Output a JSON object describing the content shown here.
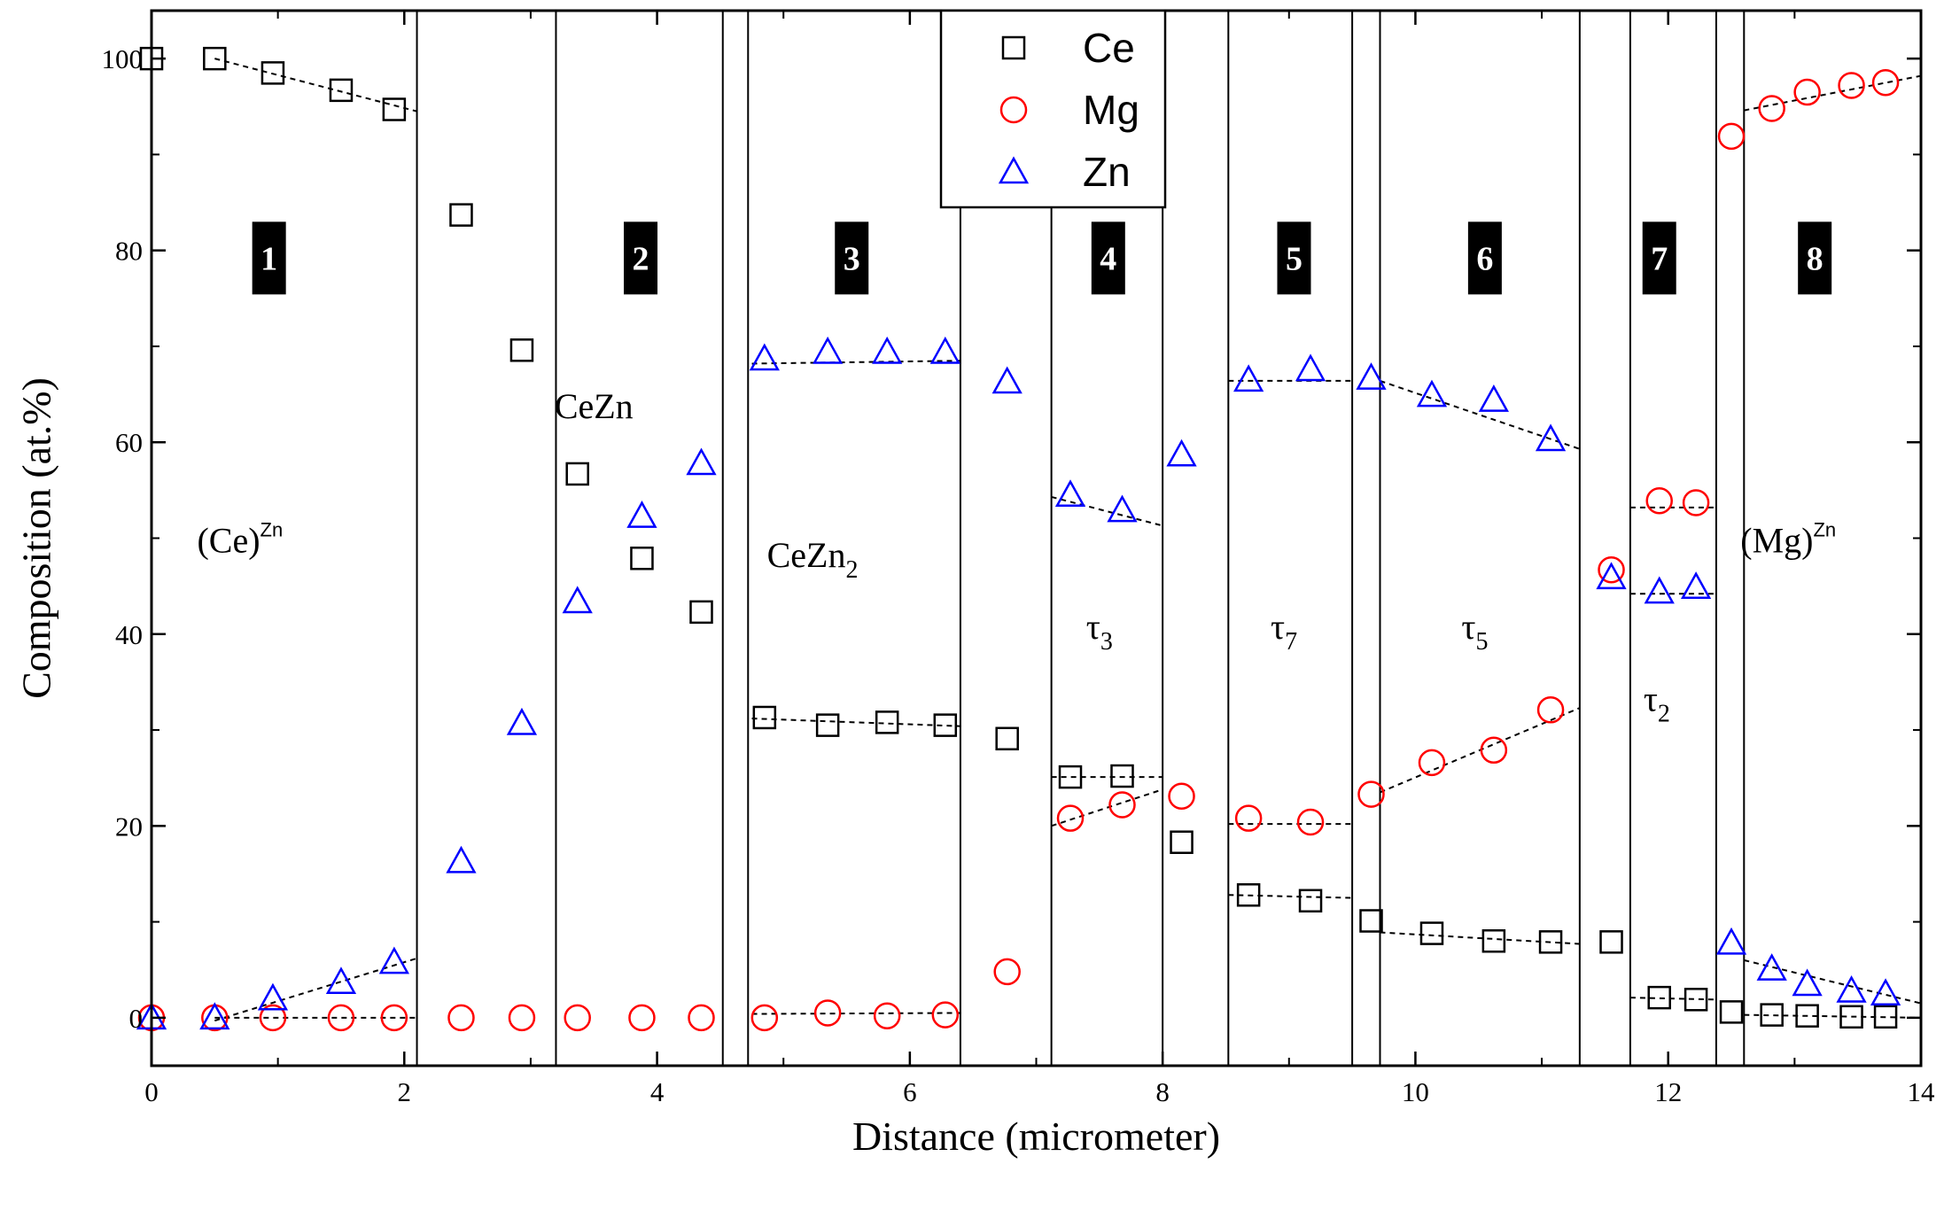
{
  "chart_data": {
    "type": "scatter",
    "xlabel": "Distance (micrometer)",
    "ylabel": "Composition (at.%)",
    "xlim": [
      0,
      14
    ],
    "ylim": [
      -5,
      105
    ],
    "x_ticks": [
      0,
      2,
      4,
      6,
      8,
      10,
      12,
      14
    ],
    "y_ticks": [
      0,
      20,
      40,
      60,
      80,
      100
    ],
    "series": [
      {
        "name": "Ce",
        "marker": "square",
        "color": "#000000",
        "points": [
          [
            0,
            100
          ],
          [
            0.5,
            100
          ],
          [
            0.96,
            98.5
          ],
          [
            1.5,
            96.7
          ],
          [
            1.92,
            94.7
          ],
          [
            2.45,
            83.7
          ],
          [
            2.93,
            69.6
          ],
          [
            3.37,
            56.7
          ],
          [
            3.88,
            47.9
          ],
          [
            4.35,
            42.3
          ],
          [
            4.85,
            31.3
          ],
          [
            5.35,
            30.5
          ],
          [
            5.82,
            30.8
          ],
          [
            6.28,
            30.5
          ],
          [
            6.77,
            29.1
          ],
          [
            7.27,
            25.1
          ],
          [
            7.68,
            25.2
          ],
          [
            8.15,
            18.3
          ],
          [
            8.68,
            12.8
          ],
          [
            9.17,
            12.2
          ],
          [
            9.65,
            10.1
          ],
          [
            10.13,
            8.8
          ],
          [
            10.62,
            8.0
          ],
          [
            11.07,
            7.9
          ],
          [
            11.55,
            7.9
          ],
          [
            11.93,
            2.1
          ],
          [
            12.22,
            1.9
          ],
          [
            12.5,
            0.6
          ],
          [
            12.82,
            0.3
          ],
          [
            13.1,
            0.2
          ],
          [
            13.45,
            0.1
          ],
          [
            13.72,
            0.1
          ]
        ]
      },
      {
        "name": "Mg",
        "marker": "circle",
        "color": "#ff0000",
        "points": [
          [
            0,
            0
          ],
          [
            0.5,
            0
          ],
          [
            0.96,
            0
          ],
          [
            1.5,
            0
          ],
          [
            1.92,
            0
          ],
          [
            2.45,
            0
          ],
          [
            2.93,
            0
          ],
          [
            3.37,
            0
          ],
          [
            3.88,
            0
          ],
          [
            4.35,
            0
          ],
          [
            4.85,
            0
          ],
          [
            5.35,
            0.5
          ],
          [
            5.82,
            0.2
          ],
          [
            6.28,
            0.3
          ],
          [
            6.77,
            4.8
          ],
          [
            7.27,
            20.8
          ],
          [
            7.68,
            22.2
          ],
          [
            8.15,
            23.1
          ],
          [
            8.68,
            20.8
          ],
          [
            9.17,
            20.4
          ],
          [
            9.65,
            23.3
          ],
          [
            10.13,
            26.6
          ],
          [
            10.62,
            27.9
          ],
          [
            11.07,
            32.1
          ],
          [
            11.55,
            46.7
          ],
          [
            11.93,
            53.9
          ],
          [
            12.22,
            53.7
          ],
          [
            12.5,
            91.9
          ],
          [
            12.82,
            94.8
          ],
          [
            13.1,
            96.5
          ],
          [
            13.45,
            97.2
          ],
          [
            13.72,
            97.5
          ]
        ]
      },
      {
        "name": "Zn",
        "marker": "triangle",
        "color": "#0000ff",
        "points": [
          [
            0,
            0
          ],
          [
            0.5,
            0
          ],
          [
            0.96,
            2.0
          ],
          [
            1.5,
            3.7
          ],
          [
            1.92,
            5.8
          ],
          [
            2.45,
            16.3
          ],
          [
            2.93,
            30.7
          ],
          [
            3.37,
            43.4
          ],
          [
            3.88,
            52.3
          ],
          [
            4.35,
            57.8
          ],
          [
            4.85,
            68.7
          ],
          [
            5.35,
            69.4
          ],
          [
            5.82,
            69.4
          ],
          [
            6.28,
            69.4
          ],
          [
            6.77,
            66.3
          ],
          [
            7.27,
            54.5
          ],
          [
            7.68,
            52.9
          ],
          [
            8.15,
            58.7
          ],
          [
            8.68,
            66.5
          ],
          [
            9.17,
            67.6
          ],
          [
            9.65,
            66.7
          ],
          [
            10.13,
            64.9
          ],
          [
            10.62,
            64.4
          ],
          [
            11.07,
            60.3
          ],
          [
            11.55,
            45.9
          ],
          [
            11.93,
            44.4
          ],
          [
            12.22,
            44.9
          ],
          [
            12.5,
            7.8
          ],
          [
            12.82,
            5.1
          ],
          [
            13.1,
            3.5
          ],
          [
            13.45,
            2.8
          ],
          [
            13.72,
            2.5
          ]
        ]
      }
    ],
    "fit_lines": [
      {
        "series": "Ce",
        "x": [
          0.5,
          2.1
        ],
        "y": [
          100,
          94.5
        ]
      },
      {
        "series": "Mg",
        "x": [
          0.5,
          2.1
        ],
        "y": [
          0,
          0
        ]
      },
      {
        "series": "Zn",
        "x": [
          0.5,
          2.1
        ],
        "y": [
          -0.3,
          6.2
        ]
      },
      {
        "series": "Ce",
        "x": [
          4.75,
          6.4
        ],
        "y": [
          31.2,
          30.4
        ]
      },
      {
        "series": "Mg",
        "x": [
          4.75,
          6.4
        ],
        "y": [
          0.4,
          0.5
        ]
      },
      {
        "series": "Zn",
        "x": [
          4.75,
          6.4
        ],
        "y": [
          68.2,
          68.5
        ]
      },
      {
        "series": "Ce",
        "x": [
          7.12,
          8.0
        ],
        "y": [
          25.1,
          25.1
        ]
      },
      {
        "series": "Mg",
        "x": [
          7.12,
          8.0
        ],
        "y": [
          20.0,
          23.8
        ]
      },
      {
        "series": "Zn",
        "x": [
          7.12,
          8.0
        ],
        "y": [
          54.3,
          51.3
        ]
      },
      {
        "series": "Ce",
        "x": [
          8.52,
          9.5
        ],
        "y": [
          12.8,
          12.5
        ]
      },
      {
        "series": "Mg",
        "x": [
          8.52,
          9.5
        ],
        "y": [
          20.2,
          20.2
        ]
      },
      {
        "series": "Zn",
        "x": [
          8.52,
          9.5
        ],
        "y": [
          66.4,
          66.4
        ]
      },
      {
        "series": "Ce",
        "x": [
          9.72,
          11.3
        ],
        "y": [
          8.9,
          7.7
        ]
      },
      {
        "series": "Mg",
        "x": [
          9.72,
          11.3
        ],
        "y": [
          23.5,
          32.3
        ]
      },
      {
        "series": "Zn",
        "x": [
          9.72,
          11.3
        ],
        "y": [
          66.4,
          59.3
        ]
      },
      {
        "series": "Ce",
        "x": [
          11.7,
          12.38
        ],
        "y": [
          2.1,
          1.9
        ]
      },
      {
        "series": "Mg",
        "x": [
          11.7,
          12.38
        ],
        "y": [
          53.2,
          53.2
        ]
      },
      {
        "series": "Zn",
        "x": [
          11.7,
          12.38
        ],
        "y": [
          44.2,
          44.2
        ]
      },
      {
        "series": "Ce",
        "x": [
          12.6,
          14
        ],
        "y": [
          0.3,
          0.0
        ]
      },
      {
        "series": "Mg",
        "x": [
          12.6,
          14
        ],
        "y": [
          94.6,
          98.2
        ]
      },
      {
        "series": "Zn",
        "x": [
          12.6,
          14
        ],
        "y": [
          6.0,
          1.5
        ]
      }
    ],
    "boundaries": [
      2.1,
      3.2,
      4.52,
      4.72,
      6.4,
      7.12,
      8.0,
      8.52,
      9.5,
      9.72,
      11.3,
      11.7,
      12.38,
      12.6
    ],
    "region_labels": [
      {
        "text": "1",
        "x": 0.93,
        "y": 79.2
      },
      {
        "text": "2",
        "x": 3.87,
        "y": 79.2
      },
      {
        "text": "3",
        "x": 5.54,
        "y": 79.2
      },
      {
        "text": "4",
        "x": 7.57,
        "y": 79.2
      },
      {
        "text": "5",
        "x": 9.04,
        "y": 79.2
      },
      {
        "text": "6",
        "x": 10.55,
        "y": 79.2
      },
      {
        "text": "7",
        "x": 11.93,
        "y": 79.2
      },
      {
        "text": "8",
        "x": 13.16,
        "y": 79.2
      }
    ],
    "phase_labels": [
      {
        "main": "(Ce)",
        "sup": "Zn",
        "sub": "",
        "x": 0.7,
        "y": 48.5
      },
      {
        "main": "CeZn",
        "sup": "",
        "sub": "",
        "x": 3.5,
        "y": 62.5
      },
      {
        "main": "CeZn",
        "sup": "",
        "sub": "2",
        "x": 5.23,
        "y": 47.0
      },
      {
        "main": "τ",
        "sup": "",
        "sub": "3",
        "x": 7.5,
        "y": 39.5
      },
      {
        "main": "τ",
        "sup": "",
        "sub": "7",
        "x": 8.96,
        "y": 39.5
      },
      {
        "main": "τ",
        "sup": "",
        "sub": "5",
        "x": 10.47,
        "y": 39.5
      },
      {
        "main": "τ",
        "sup": "",
        "sub": "2",
        "x": 11.91,
        "y": 32.0
      },
      {
        "main": "(Mg)",
        "sup": "Zn",
        "sub": "",
        "x": 12.95,
        "y": 48.5
      }
    ],
    "legend": {
      "position": "top-center",
      "items": [
        {
          "name": "Ce",
          "marker": "square",
          "color": "#000000"
        },
        {
          "name": "Mg",
          "marker": "circle",
          "color": "#ff0000"
        },
        {
          "name": "Zn",
          "marker": "triangle",
          "color": "#0000ff"
        }
      ]
    }
  }
}
